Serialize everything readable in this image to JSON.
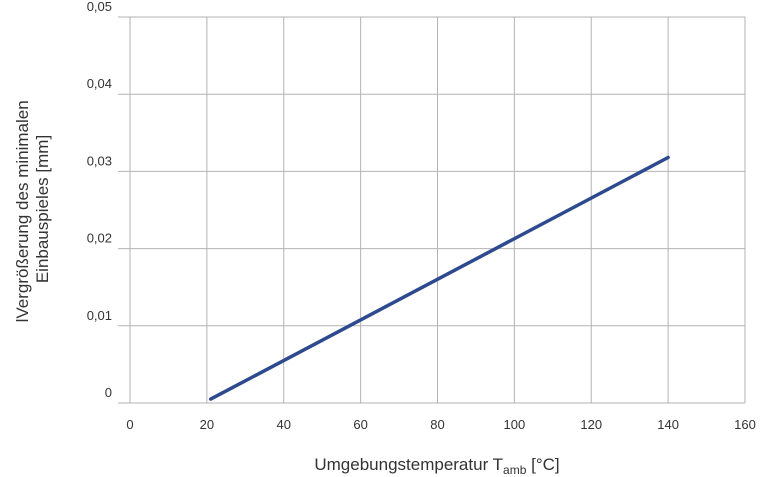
{
  "colors": {
    "series": "#2e4a8f",
    "grid": "#b3b3b3",
    "text": "#333333"
  },
  "chart_data": {
    "type": "line",
    "title": "",
    "xlabel": {
      "main": "Umgebungstemperatur T",
      "sub": "amb",
      "unit": " [°C]"
    },
    "ylabel": [
      "lVergrößerung des minimalen",
      "Einbauspieles [mm]"
    ],
    "xlim": [
      0,
      160
    ],
    "ylim": [
      0,
      0.05
    ],
    "x_ticks": [
      0,
      20,
      40,
      60,
      80,
      100,
      120,
      140,
      160
    ],
    "x_tick_labels": [
      "0",
      "20",
      "40",
      "60",
      "80",
      "100",
      "120",
      "140",
      "160"
    ],
    "y_ticks": [
      0,
      0.01,
      0.02,
      0.03,
      0.04,
      0.05
    ],
    "y_tick_labels": [
      "0",
      "0,01",
      "0,02",
      "0,03",
      "0,04",
      "0,05"
    ],
    "grid": true,
    "series": [
      {
        "x": [
          21,
          140
        ],
        "y": [
          0.0005,
          0.0318
        ]
      }
    ]
  }
}
